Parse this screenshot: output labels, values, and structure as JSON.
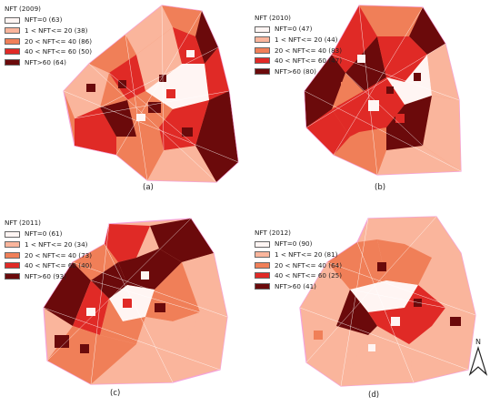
{
  "colors": {
    "c0": "#fff5f3",
    "c1": "#fab59c",
    "c2": "#f07f58",
    "c3": "#e02a26",
    "c4": "#6b0a0b",
    "boundary": "#f4a3da",
    "streets": "#ffffff"
  },
  "panels": [
    {
      "title": "NFT (2009)",
      "caption": "(a)",
      "legend": [
        {
          "label": "NFT=0 (63)",
          "color": "#fff5f3"
        },
        {
          "label": "1 < NFT<= 20 (38)",
          "color": "#fab59c"
        },
        {
          "label": "20 < NFT<= 40 (86)",
          "color": "#f07f58"
        },
        {
          "label": "40 < NFT<= 60 (50)",
          "color": "#e02a26"
        },
        {
          "label": "NFT>60  (64)",
          "color": "#6b0a0b"
        }
      ]
    },
    {
      "title": "NFT (2010)",
      "caption": "(b)",
      "legend": [
        {
          "label": "NFT=0 (47)",
          "color": "#fff5f3"
        },
        {
          "label": "1 < NFT<= 20 (44)",
          "color": "#fab59c"
        },
        {
          "label": "20 < NFT<= 40 (83)",
          "color": "#f07f58"
        },
        {
          "label": "40 < NFT<= 60 (47)",
          "color": "#e02a26"
        },
        {
          "label": "NFT>60  (80)",
          "color": "#6b0a0b"
        }
      ]
    },
    {
      "title": "NFT (2011)",
      "caption": "(c)",
      "legend": [
        {
          "label": "NFT=0 (61)",
          "color": "#fff5f3"
        },
        {
          "label": "1 < NFT<= 20 (34)",
          "color": "#fab59c"
        },
        {
          "label": "20 < NFT<= 40 (73)",
          "color": "#f07f58"
        },
        {
          "label": "40 < NFT<= 60 (40)",
          "color": "#e02a26"
        },
        {
          "label": "NFT>60  (93)",
          "color": "#6b0a0b"
        }
      ]
    },
    {
      "title": "NFT (2012)",
      "caption": "(d)",
      "legend": [
        {
          "label": "NFT=0 (90)",
          "color": "#fff5f3"
        },
        {
          "label": "1 < NFT<= 20 (81)",
          "color": "#fab59c"
        },
        {
          "label": "20 < NFT<= 40 (64)",
          "color": "#f07f58"
        },
        {
          "label": "40 < NFT<= 60 (25)",
          "color": "#e02a26"
        },
        {
          "label": "NFT>60  (41)",
          "color": "#6b0a0b"
        }
      ]
    }
  ],
  "north_arrow": {
    "label": "N"
  }
}
